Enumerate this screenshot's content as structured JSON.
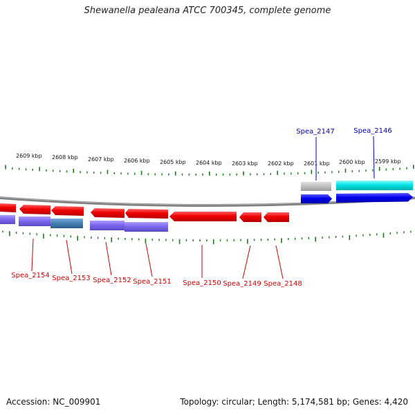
{
  "title": "Shewanella pealeana ATCC 700345, complete genome",
  "footer": {
    "accession": "Accession: NC_009901",
    "summary": "Topology: circular; Length: 5,174,581 bp; Genes: 4,420"
  },
  "colors": {
    "backbone": "#808080",
    "tick": "#1a7a1a",
    "forward_cds": "#0000ee",
    "forward_cds_alt": "#00e5e5",
    "forward_gray": "#bfbfbf",
    "reverse_cds": "#ee0000",
    "reverse_purple": "#7b68ee",
    "reverse_steel": "#4682b4",
    "forward_label": "#0000aa",
    "reverse_label": "#cc0000"
  },
  "scale_labels": [
    "2609 kbp",
    "2608 kbp",
    "2607 kbp",
    "2606 kbp",
    "2605 kbp",
    "2604 kbp",
    "2603 kbp",
    "2602 kbp",
    "2601 kbp",
    "2600 kbp",
    "2599 kbp"
  ],
  "genes_forward": [
    {
      "label": "Spea_2147"
    },
    {
      "label": "Spea_2146"
    }
  ],
  "genes_reverse": [
    {
      "label": "Spea_2154"
    },
    {
      "label": "Spea_2153"
    },
    {
      "label": "Spea_2152"
    },
    {
      "label": "Spea_2151"
    },
    {
      "label": "Spea_2150"
    },
    {
      "label": "Spea_2149"
    },
    {
      "label": "Spea_2148"
    }
  ]
}
